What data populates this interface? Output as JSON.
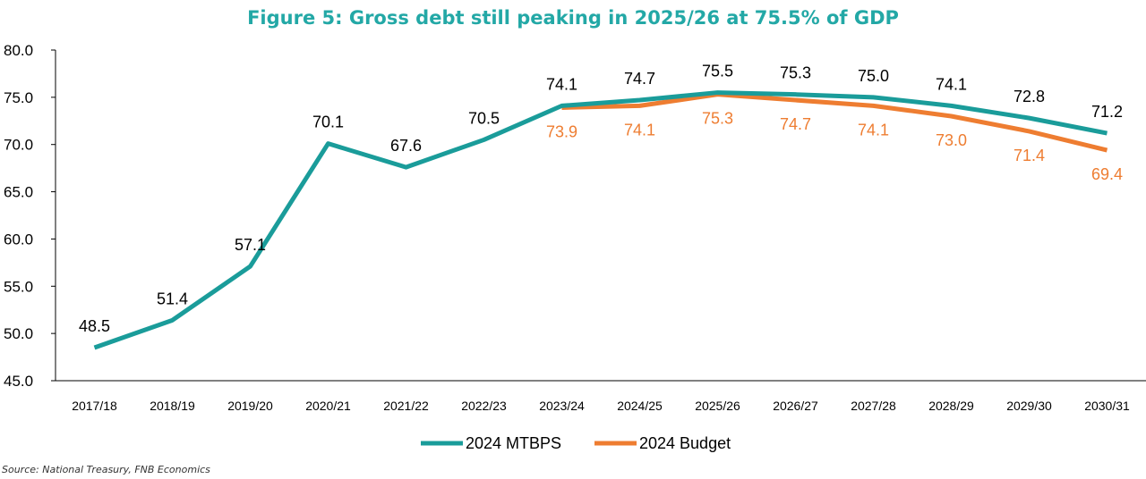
{
  "colors": {
    "mtbps": "#1a9c9a",
    "budget": "#ee7d31",
    "title": "#23a8a6",
    "axis": "#000000"
  },
  "chart_data": {
    "type": "line",
    "title": "Figure 5: Gross debt still peaking in 2025/26 at 75.5% of GDP",
    "ylim": [
      45.0,
      80.0
    ],
    "yticks": [
      "45.0",
      "50.0",
      "55.0",
      "60.0",
      "65.0",
      "70.0",
      "75.0",
      "80.0"
    ],
    "categories": [
      "2017/18",
      "2018/19",
      "2019/20",
      "2020/21",
      "2021/22",
      "2022/23",
      "2023/24",
      "2024/25",
      "2025/26",
      "2026/27",
      "2027/28",
      "2028/29",
      "2029/30",
      "2030/31"
    ],
    "series": [
      {
        "name": "2024 MTBPS",
        "values": [
          48.5,
          51.4,
          57.1,
          70.1,
          67.6,
          70.5,
          74.1,
          74.7,
          75.5,
          75.3,
          75.0,
          74.1,
          72.8,
          71.2
        ],
        "labels": [
          "48.5",
          "51.4",
          "57.1",
          "70.1",
          "67.6",
          "70.5",
          "74.1",
          "74.7",
          "75.5",
          "75.3",
          "75.0",
          "74.1",
          "72.8",
          "71.2"
        ]
      },
      {
        "name": "2024 Budget",
        "values": [
          null,
          null,
          null,
          null,
          null,
          null,
          73.9,
          74.1,
          75.3,
          74.7,
          74.1,
          73.0,
          71.4,
          69.4
        ],
        "labels": [
          null,
          null,
          null,
          null,
          null,
          null,
          "73.9",
          "74.1",
          "75.3",
          "74.7",
          "74.1",
          "73.0",
          "71.4",
          "69.4"
        ]
      }
    ],
    "legend_position": "bottom",
    "grid": false,
    "source": "Source: National Treasury, FNB Economics"
  }
}
